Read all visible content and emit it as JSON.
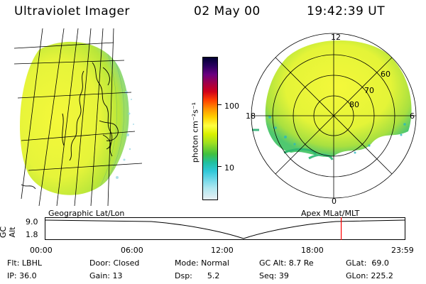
{
  "header": {
    "instrument": "Ultraviolet Imager",
    "date": "02 May 00",
    "time": "19:42:39 UT"
  },
  "colorbar": {
    "ticks": [
      "100",
      "10"
    ],
    "unit_label": "photon cm⁻²s⁻¹",
    "colors": [
      "#000033",
      "#2a0060",
      "#6a0080",
      "#a0004a",
      "#d0001a",
      "#ff4000",
      "#ff9000",
      "#ffd000",
      "#ffff40",
      "#d8f000",
      "#a0e020",
      "#40c040",
      "#20c0a0",
      "#30c8d8",
      "#70d8e8",
      "#b0e8f0",
      "#e8f0f4"
    ]
  },
  "polar": {
    "top_label": "12",
    "left_label": "18",
    "right_label": "6",
    "bottom_label": "0",
    "ring_labels": [
      "60",
      "70",
      "80"
    ]
  },
  "map_labels": {
    "left": "Geographic Lat/Lon",
    "right": "Apex MLat/MLT"
  },
  "timeline": {
    "axis_label": "GC Alt",
    "y_ticks": [
      "9.0",
      "1.8"
    ],
    "x_ticks": [
      "00:00",
      "06:00",
      "12:00",
      "18:00",
      "23:59"
    ],
    "current_time_fraction": 0.822,
    "marker_color": "#ff0000"
  },
  "footer": {
    "row1": [
      "Flt: LBHL",
      "Door: Closed",
      "Mode: Normal",
      "GC Alt: 8.7 Re",
      "GLat:  69.0"
    ],
    "row2": [
      "IP: 36.0",
      "Gain: 13",
      "Dsp:      5.2",
      "Seq: 39",
      "GLon: 225.2"
    ]
  }
}
